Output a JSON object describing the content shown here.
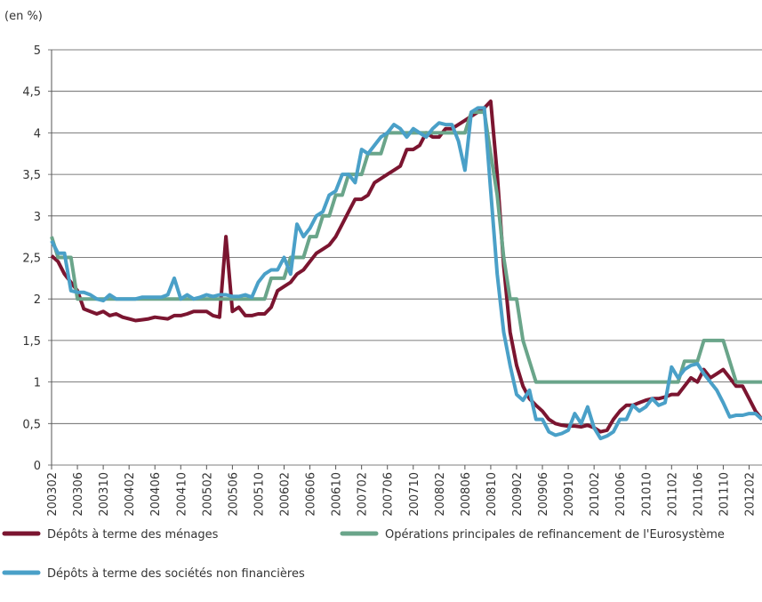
{
  "chart_data": {
    "type": "line",
    "y_label": "(en %)",
    "categories": [
      "200302",
      null,
      null,
      null,
      "200306",
      null,
      null,
      null,
      "200310",
      null,
      null,
      null,
      "200402",
      null,
      null,
      null,
      "200406",
      null,
      null,
      null,
      "200410",
      null,
      null,
      null,
      "200502",
      null,
      null,
      null,
      "200506",
      null,
      null,
      null,
      "200510",
      null,
      null,
      null,
      "200602",
      null,
      null,
      null,
      "200606",
      null,
      null,
      null,
      "200610",
      null,
      null,
      null,
      "200702",
      null,
      null,
      null,
      "200706",
      null,
      null,
      null,
      "200710",
      null,
      null,
      null,
      "200802",
      null,
      null,
      null,
      "200806",
      null,
      null,
      null,
      "200810",
      null,
      null,
      null,
      "200902",
      null,
      null,
      null,
      "200906",
      null,
      null,
      null,
      "200910",
      null,
      null,
      null,
      "201002",
      null,
      null,
      null,
      "201006",
      null,
      null,
      null,
      "201010",
      null,
      null,
      null,
      "201102",
      null,
      null,
      null,
      "201106",
      null,
      null,
      null,
      "201110",
      null,
      null,
      null,
      "201202",
      null,
      null
    ],
    "series": [
      {
        "name": "Dépôts à terme des ménages",
        "color": "#7b1530",
        "values": [
          2.52,
          2.45,
          2.3,
          2.2,
          2.1,
          1.88,
          1.85,
          1.82,
          1.85,
          1.8,
          1.82,
          1.78,
          1.76,
          1.74,
          1.75,
          1.76,
          1.78,
          1.77,
          1.76,
          1.8,
          1.8,
          1.82,
          1.85,
          1.85,
          1.85,
          1.8,
          1.78,
          2.75,
          1.85,
          1.9,
          1.8,
          1.8,
          1.82,
          1.82,
          1.9,
          2.1,
          2.15,
          2.2,
          2.3,
          2.35,
          2.45,
          2.55,
          2.6,
          2.65,
          2.75,
          2.9,
          3.05,
          3.2,
          3.2,
          3.25,
          3.4,
          3.45,
          3.5,
          3.55,
          3.6,
          3.8,
          3.8,
          3.85,
          4.0,
          3.95,
          3.95,
          4.05,
          4.05,
          4.1,
          4.15,
          4.2,
          4.25,
          4.3,
          4.38,
          3.5,
          2.4,
          1.6,
          1.2,
          0.95,
          0.8,
          0.72,
          0.65,
          0.55,
          0.5,
          0.48,
          0.47,
          0.47,
          0.46,
          0.48,
          0.45,
          0.4,
          0.42,
          0.55,
          0.65,
          0.72,
          0.72,
          0.75,
          0.78,
          0.8,
          0.8,
          0.82,
          0.85,
          0.85,
          0.95,
          1.05,
          1.0,
          1.15,
          1.05,
          1.1,
          1.15,
          1.05,
          0.95,
          0.95,
          0.8,
          0.65,
          0.55
        ]
      },
      {
        "name": "Opérations principales de refinancement de l'Eurosystème",
        "color": "#6aa58a",
        "values": [
          2.75,
          2.5,
          2.5,
          2.5,
          2,
          2,
          2,
          2,
          2,
          2,
          2,
          2,
          2,
          2,
          2,
          2,
          2,
          2,
          2,
          2,
          2,
          2,
          2,
          2,
          2,
          2,
          2,
          2,
          2,
          2,
          2,
          2,
          2,
          2,
          2.25,
          2.25,
          2.25,
          2.5,
          2.5,
          2.5,
          2.75,
          2.75,
          3,
          3,
          3.25,
          3.25,
          3.5,
          3.5,
          3.5,
          3.75,
          3.75,
          3.75,
          4,
          4,
          4,
          4,
          4,
          4,
          4,
          4,
          4,
          4,
          4,
          4,
          4,
          4.25,
          4.25,
          4.25,
          3.75,
          3.25,
          2.5,
          2,
          2,
          1.5,
          1.25,
          1,
          1,
          1,
          1,
          1,
          1,
          1,
          1,
          1,
          1,
          1,
          1,
          1,
          1,
          1,
          1,
          1,
          1,
          1,
          1,
          1,
          1,
          1,
          1.25,
          1.25,
          1.25,
          1.5,
          1.5,
          1.5,
          1.5,
          1.25,
          1,
          1,
          1,
          1,
          1
        ]
      },
      {
        "name": "Dépôts à terme des sociétés non financières",
        "color": "#4aa0c8",
        "values": [
          2.7,
          2.55,
          2.55,
          2.1,
          2.08,
          2.08,
          2.05,
          2.0,
          1.98,
          2.05,
          2.0,
          2.0,
          2.0,
          2.0,
          2.02,
          2.02,
          2.02,
          2.02,
          2.05,
          2.25,
          2.0,
          2.05,
          2.0,
          2.02,
          2.05,
          2.03,
          2.05,
          2.05,
          2.03,
          2.03,
          2.05,
          2.02,
          2.2,
          2.3,
          2.35,
          2.35,
          2.5,
          2.3,
          2.9,
          2.75,
          2.85,
          3.0,
          3.05,
          3.25,
          3.3,
          3.5,
          3.5,
          3.4,
          3.8,
          3.75,
          3.85,
          3.95,
          4.0,
          4.1,
          4.05,
          3.95,
          4.05,
          4.0,
          3.95,
          4.05,
          4.12,
          4.1,
          4.1,
          3.9,
          3.55,
          4.25,
          4.3,
          4.3,
          3.3,
          2.3,
          1.6,
          1.2,
          0.85,
          0.78,
          0.9,
          0.55,
          0.55,
          0.4,
          0.36,
          0.38,
          0.42,
          0.62,
          0.5,
          0.7,
          0.45,
          0.32,
          0.35,
          0.4,
          0.55,
          0.55,
          0.72,
          0.65,
          0.7,
          0.8,
          0.72,
          0.75,
          1.18,
          1.05,
          1.15,
          1.2,
          1.22,
          1.1,
          1.0,
          0.9,
          0.75,
          0.58,
          0.6,
          0.6,
          0.62,
          0.62,
          0.55
        ]
      }
    ],
    "ylim": [
      0,
      5
    ],
    "yticks": [
      0,
      {
        "value": 0.5,
        "label": "0,5"
      },
      1,
      {
        "value": 1.5,
        "label": "1,5"
      },
      2,
      {
        "value": 2.5,
        "label": "2,5"
      },
      3,
      {
        "value": 3.5,
        "label": "3,5"
      },
      4,
      {
        "value": 4.5,
        "label": "4,5"
      },
      5
    ],
    "grid": true
  }
}
